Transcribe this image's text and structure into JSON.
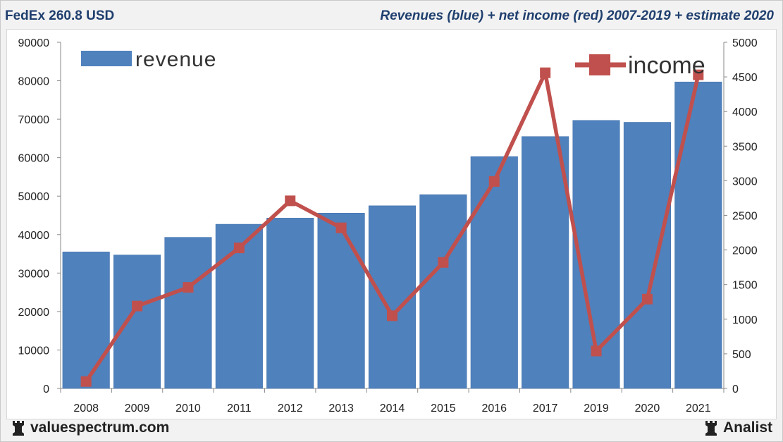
{
  "header": {
    "left_title": "FedEx 260.8 USD",
    "right_title": "Revenues (blue) + net income (red) 2007-2019 + estimate 2020"
  },
  "footer": {
    "site": "valuespectrum.com",
    "brand": "Analist"
  },
  "colors": {
    "bar": "#4f81bd",
    "line": "#c0504d",
    "title": "#1f3f6e"
  },
  "chart_data": {
    "type": "bar+line",
    "categories": [
      "2008",
      "2009",
      "2010",
      "2011",
      "2012",
      "2013",
      "2014",
      "2015",
      "2016",
      "2017",
      "2019",
      "2020",
      "2021"
    ],
    "series": [
      {
        "name": "revenue",
        "type": "bar",
        "axis": "left",
        "values": [
          35500,
          34700,
          39300,
          42700,
          44300,
          45600,
          47500,
          50400,
          60300,
          65500,
          69700,
          69200,
          79700
        ]
      },
      {
        "name": "income",
        "type": "line",
        "axis": "right",
        "values": [
          100,
          1190,
          1460,
          2030,
          2710,
          2320,
          1050,
          1820,
          2990,
          4560,
          540,
          1290,
          4530
        ]
      }
    ],
    "y_left": {
      "min": 0,
      "max": 90000,
      "ticks": [
        0,
        10000,
        20000,
        30000,
        40000,
        50000,
        60000,
        70000,
        80000,
        90000
      ]
    },
    "y_right": {
      "min": 0,
      "max": 5000,
      "ticks": [
        0,
        500,
        1000,
        1500,
        2000,
        2500,
        3000,
        3500,
        4000,
        4500,
        5000
      ]
    },
    "legend": {
      "revenue_label": "revenue",
      "income_label": "income"
    }
  }
}
